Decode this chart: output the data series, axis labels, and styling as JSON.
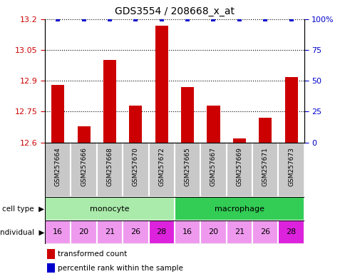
{
  "title": "GDS3554 / 208668_x_at",
  "samples": [
    "GSM257664",
    "GSM257666",
    "GSM257668",
    "GSM257670",
    "GSM257672",
    "GSM257665",
    "GSM257667",
    "GSM257669",
    "GSM257671",
    "GSM257673"
  ],
  "red_values": [
    12.88,
    12.68,
    13.0,
    12.78,
    13.17,
    12.87,
    12.78,
    12.62,
    12.72,
    12.92
  ],
  "blue_values": [
    100,
    100,
    100,
    100,
    100,
    100,
    100,
    100,
    100,
    100
  ],
  "ylim_left": [
    12.6,
    13.2
  ],
  "ylim_right": [
    0,
    100
  ],
  "yticks_left": [
    12.6,
    12.75,
    12.9,
    13.05,
    13.2
  ],
  "yticks_right": [
    0,
    25,
    50,
    75,
    100
  ],
  "ytick_labels_left": [
    "12.6",
    "12.75",
    "12.9",
    "13.05",
    "13.2"
  ],
  "ytick_labels_right": [
    "0",
    "25",
    "50",
    "75",
    "100%"
  ],
  "cell_types": [
    {
      "label": "monocyte",
      "start": 0,
      "end": 5,
      "color": "#aaeaaa"
    },
    {
      "label": "macrophage",
      "start": 5,
      "end": 10,
      "color": "#33cc55"
    }
  ],
  "individuals": [
    "16",
    "20",
    "21",
    "26",
    "28",
    "16",
    "20",
    "21",
    "26",
    "28"
  ],
  "individual_colors": [
    "#EE99EE",
    "#EE99EE",
    "#EE99EE",
    "#EE99EE",
    "#DD22DD",
    "#EE99EE",
    "#EE99EE",
    "#EE99EE",
    "#EE99EE",
    "#DD22DD"
  ],
  "bar_color": "#CC0000",
  "dot_color": "#0000CC",
  "legend_red": "transformed count",
  "legend_blue": "percentile rank within the sample",
  "bar_width": 0.5,
  "dot_size": 5,
  "tick_color_left": "#CC0000",
  "tick_color_right": "#0000CC",
  "sample_bg": "#C8C8C8",
  "sample_border": "#888888"
}
